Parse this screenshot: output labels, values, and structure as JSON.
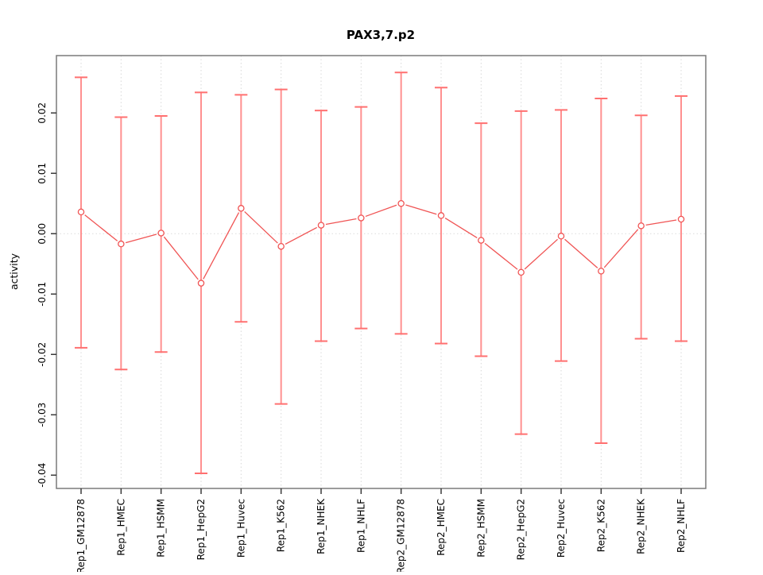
{
  "chart_data": {
    "type": "scatter",
    "subtype": "points-with-error-bars-connected",
    "title": "PAX3,7.p2",
    "xlabel": "",
    "ylabel": "activity",
    "ylim": [
      -0.0422,
      0.0295
    ],
    "yticks": [
      {
        "value": 0.02,
        "label": "0.02"
      },
      {
        "value": 0.01,
        "label": "0.01"
      },
      {
        "value": 0.0,
        "label": "0.00"
      },
      {
        "value": -0.01,
        "label": "-0.01"
      },
      {
        "value": -0.02,
        "label": "-0.02"
      },
      {
        "value": -0.03,
        "label": "-0.03"
      },
      {
        "value": -0.04,
        "label": "-0.04"
      }
    ],
    "categories": [
      "Rep1_GM12878",
      "Rep1_HMEC",
      "Rep1_HSMM",
      "Rep1_HepG2",
      "Rep1_Huvec",
      "Rep1_K562",
      "Rep1_NHEK",
      "Rep1_NHLF",
      "Rep2_GM12878",
      "Rep2_HMEC",
      "Rep2_HSMM",
      "Rep2_HepG2",
      "Rep2_Huvec",
      "Rep2_K562",
      "Rep2_NHEK",
      "Rep2_NHLF"
    ],
    "series": [
      {
        "name": "activity",
        "values": [
          0.0036,
          -0.0017,
          0.0001,
          -0.0082,
          0.0042,
          -0.0021,
          0.0014,
          0.0026,
          0.005,
          0.003,
          -0.0011,
          -0.0064,
          -0.0004,
          -0.0062,
          0.0013,
          0.0024
        ],
        "upper": [
          0.0259,
          0.0193,
          0.0195,
          0.0234,
          0.023,
          0.0239,
          0.0204,
          0.021,
          0.0267,
          0.0242,
          0.0183,
          0.0203,
          0.0205,
          0.0224,
          0.0196,
          0.0228
        ],
        "lower": [
          -0.0189,
          -0.0225,
          -0.0196,
          -0.0397,
          -0.0146,
          -0.0282,
          -0.0178,
          -0.0157,
          -0.0166,
          -0.0182,
          -0.0203,
          -0.0332,
          -0.0211,
          -0.0347,
          -0.0174,
          -0.0178
        ]
      }
    ],
    "legend": "none",
    "grid": {
      "vertical_dotted_per_category": true,
      "horizontal_dotted_at_zero": true
    },
    "colors": {
      "point_stroke": "#f05454",
      "connector_line": "#f05454",
      "error_bar": "#ff9090",
      "error_cap": "#ff7070",
      "gridline": "#d8d8d8",
      "zero_line": "#dcdcdc",
      "frame": "#7a7a7a",
      "tick": "#3a3a3a",
      "text": "#000000",
      "background": "#ffffff"
    }
  }
}
